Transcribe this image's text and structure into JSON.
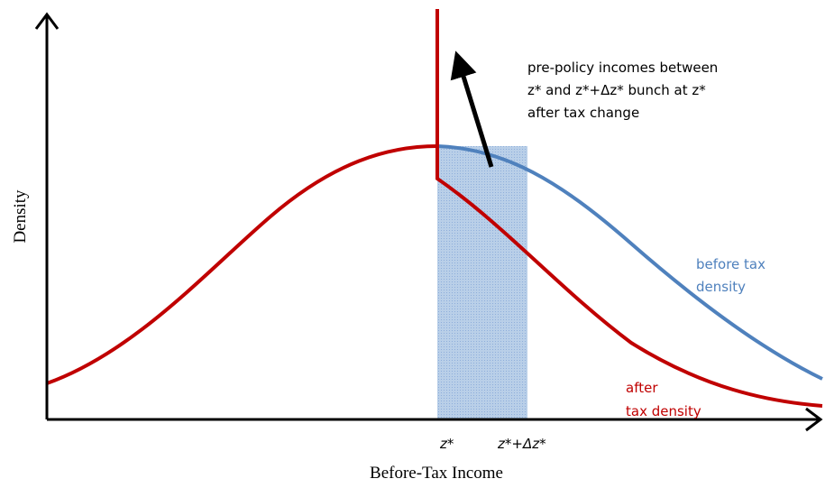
{
  "y_axis_label": "Density",
  "x_axis_label": "Before-Tax Income",
  "annotation": [
    "pre-policy incomes between",
    "z* and z*+Δz* bunch at z*",
    "after tax change"
  ],
  "before_label": [
    "before tax",
    "density"
  ],
  "after_label": [
    "after",
    "tax density"
  ],
  "x_markers": [
    "z*",
    "z*+Δz*"
  ]
}
